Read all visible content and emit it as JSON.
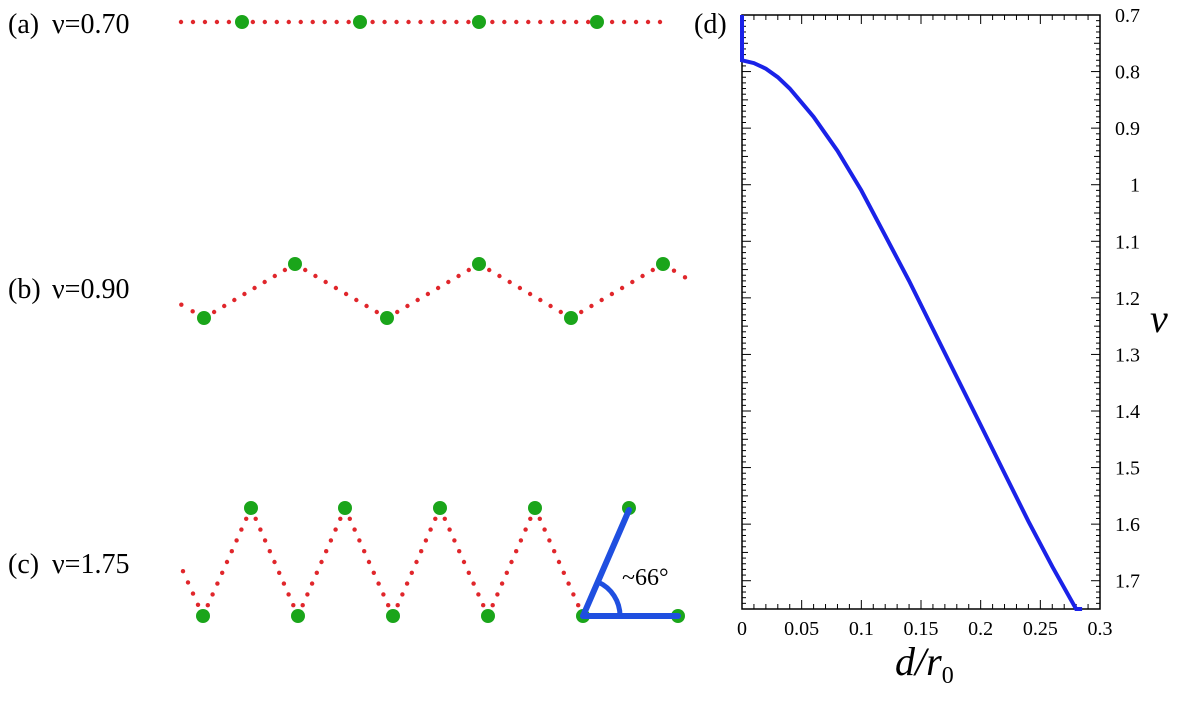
{
  "panels": {
    "a": {
      "tag": "(a)",
      "text": "ν=0.70"
    },
    "b": {
      "tag": "(b)",
      "text": "ν=0.90"
    },
    "c": {
      "tag": "(c)",
      "text": "ν=1.75"
    },
    "d": {
      "tag": "(d)"
    }
  },
  "angle_annotation": "~66°",
  "colors": {
    "atom": "#1aa51a",
    "spring": "#e0262b",
    "curve": "#1a22e8",
    "angle_marker": "#1f4fe0"
  },
  "chart_data": {
    "type": "line",
    "xlabel_main": "d/r",
    "xlabel_sub": "0",
    "ylabel": "ν",
    "xlim": [
      0,
      0.3
    ],
    "ylim": [
      0.7,
      1.75
    ],
    "y_inverted": true,
    "y_axis_side": "right",
    "x_ticks": [
      "0",
      "0.05",
      "0.1",
      "0.15",
      "0.2",
      "0.25",
      "0.3"
    ],
    "y_ticks": [
      "0.7",
      "0.8",
      "0.9",
      "1",
      "1.1",
      "1.2",
      "1.3",
      "1.4",
      "1.5",
      "1.6",
      "1.7"
    ],
    "series": [
      {
        "x": [
          0,
          0,
          0.01,
          0.02,
          0.03,
          0.04,
          0.05,
          0.06,
          0.07,
          0.08,
          0.09,
          0.1,
          0.12,
          0.14,
          0.16,
          0.18,
          0.2,
          0.22,
          0.24,
          0.26,
          0.28,
          0.285
        ],
        "y": [
          0.7,
          0.78,
          0.785,
          0.795,
          0.81,
          0.83,
          0.855,
          0.88,
          0.91,
          0.94,
          0.975,
          1.01,
          1.09,
          1.17,
          1.255,
          1.34,
          1.425,
          1.51,
          1.595,
          1.675,
          1.755,
          1.775
        ]
      }
    ]
  }
}
